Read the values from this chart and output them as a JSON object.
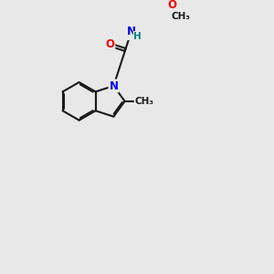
{
  "background_color": "#e8e8e8",
  "bond_color": "#1a1a1a",
  "atom_colors": {
    "N": "#0000ee",
    "O": "#ee0000",
    "H": "#008080",
    "C": "#1a1a1a"
  },
  "figsize": [
    3.0,
    3.0
  ],
  "dpi": 100
}
